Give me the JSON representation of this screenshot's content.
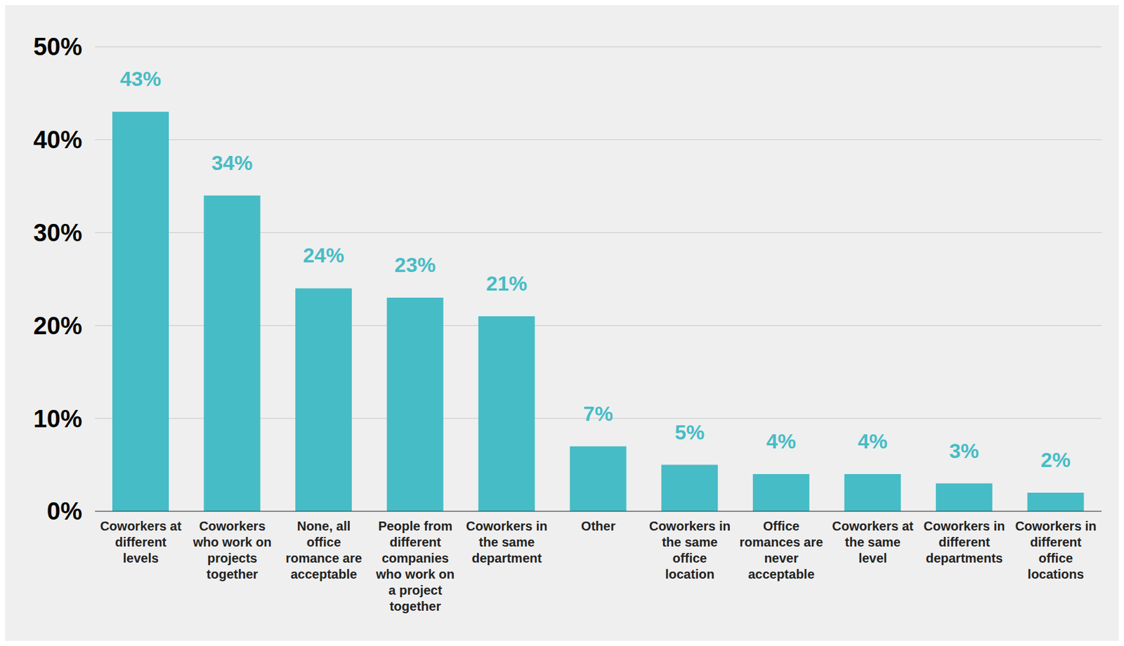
{
  "chart_data": {
    "type": "bar",
    "categories": [
      "Coworkers at different levels",
      "Coworkers who work on projects together",
      "None, all office romance are acceptable",
      "People from different companies who work on a project together",
      "Coworkers in the same department",
      "Other",
      "Coworkers in the same office location",
      "Office romances are never acceptable",
      "Coworkers at the same level",
      "Coworkers in different departments",
      "Coworkers in different office locations"
    ],
    "values": [
      43,
      34,
      24,
      23,
      21,
      7,
      5,
      4,
      4,
      3,
      2
    ],
    "value_labels": [
      "43%",
      "34%",
      "24%",
      "23%",
      "21%",
      "7%",
      "5%",
      "4%",
      "4%",
      "3%",
      "2%"
    ],
    "data_labels": true,
    "color": "#46bcc6",
    "ylim": [
      0,
      50
    ],
    "yticks": [
      {
        "value": 0,
        "label": "0%"
      },
      {
        "value": 10,
        "label": "10%"
      },
      {
        "value": 20,
        "label": "20%"
      },
      {
        "value": 30,
        "label": "30%"
      },
      {
        "value": 40,
        "label": "40%"
      },
      {
        "value": 50,
        "label": "50%"
      }
    ],
    "grid": true
  }
}
